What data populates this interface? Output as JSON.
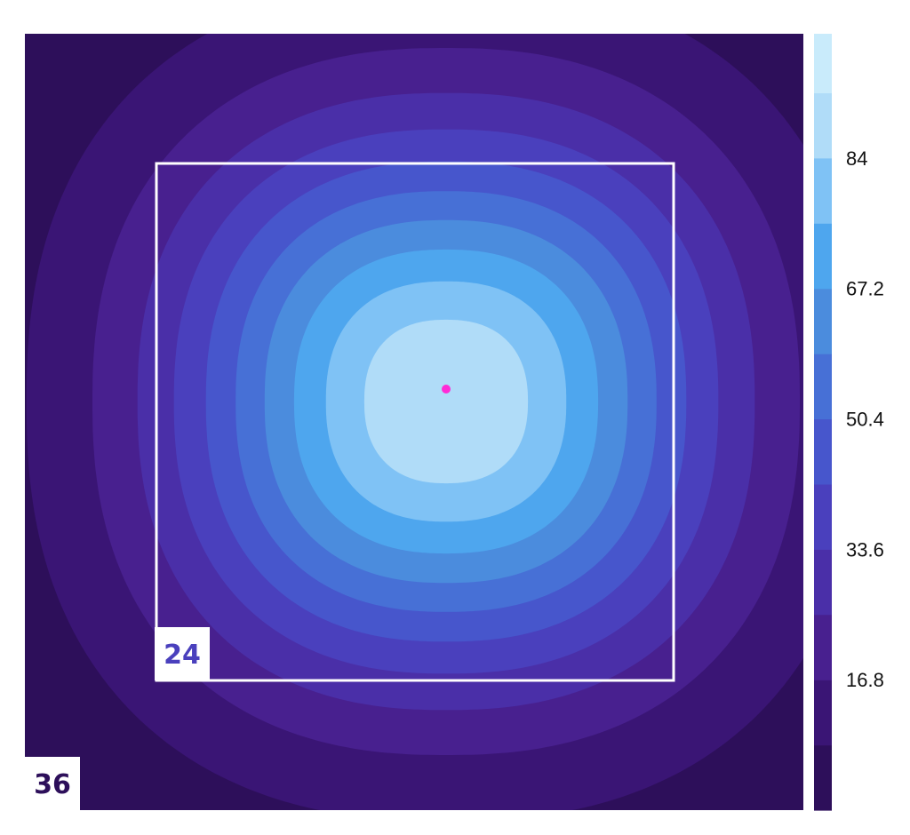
{
  "chart_data": {
    "type": "heatmap",
    "title": "",
    "xlabel": "",
    "ylabel": "",
    "grid": false,
    "colorbar": {
      "position": "right",
      "ticks": [
        16.8,
        33.6,
        50.4,
        67.2,
        84
      ],
      "tick_labels": [
        "16.8",
        "33.6",
        "50.4",
        "67.2",
        "84"
      ],
      "range": [
        0,
        100
      ]
    },
    "contour_levels": [
      0,
      8.4,
      16.8,
      25.2,
      33.6,
      42,
      50.4,
      58.8,
      67.2,
      75.6,
      84,
      92.4,
      100
    ],
    "level_colors": [
      "#2d0f5a",
      "#3a1575",
      "#48208f",
      "#4a2fa8",
      "#4a40bd",
      "#4756cc",
      "#4770d6",
      "#4b8cdd",
      "#4ea6ee",
      "#7fc2f5",
      "#b0dcf8",
      "#c9ebfb"
    ],
    "peak": {
      "value": 92,
      "marker_color": "#ff2bd6"
    },
    "boxes": [
      {
        "label": "24",
        "color": "#4a40bd"
      },
      {
        "label": "36",
        "color": "#2d0f5a"
      }
    ]
  }
}
